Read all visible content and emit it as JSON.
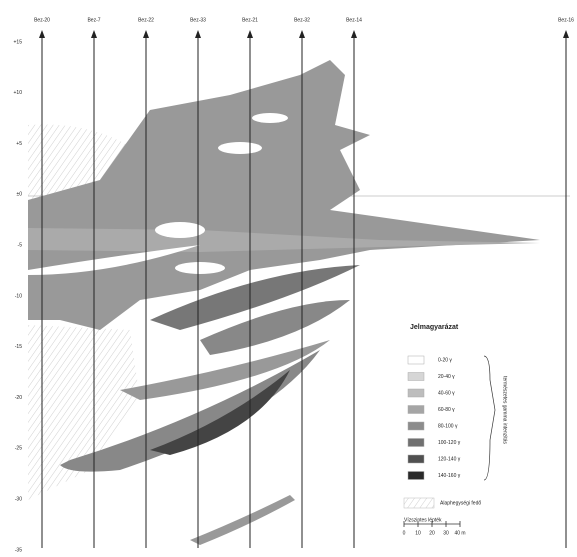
{
  "wells": [
    "Bez-20",
    "Bez-7",
    "Bez-22",
    "Bez-33",
    "Bez-21",
    "Bez-32",
    "Bez-14",
    "Bez-16"
  ],
  "depth_labels": [
    "+15",
    "+10",
    "+5",
    "±0",
    "-5",
    "-10",
    "-15",
    "-20",
    "-25",
    "-30",
    "-35"
  ],
  "legend": {
    "title": "Jelmagyarázat",
    "items": [
      "0-20 γ",
      "20-40 γ",
      "40-60 γ",
      "60-80 γ",
      "80-100 γ",
      "100-120 γ",
      "120-140 γ",
      "140-160 γ"
    ],
    "bracket_label": "természetes gamma intenzitás",
    "hatch_label": "Alaphegységi fedő",
    "scale_title": "Vízszintes lépték",
    "scale_ticks": [
      "0",
      "10",
      "20",
      "30",
      "40 m"
    ]
  }
}
